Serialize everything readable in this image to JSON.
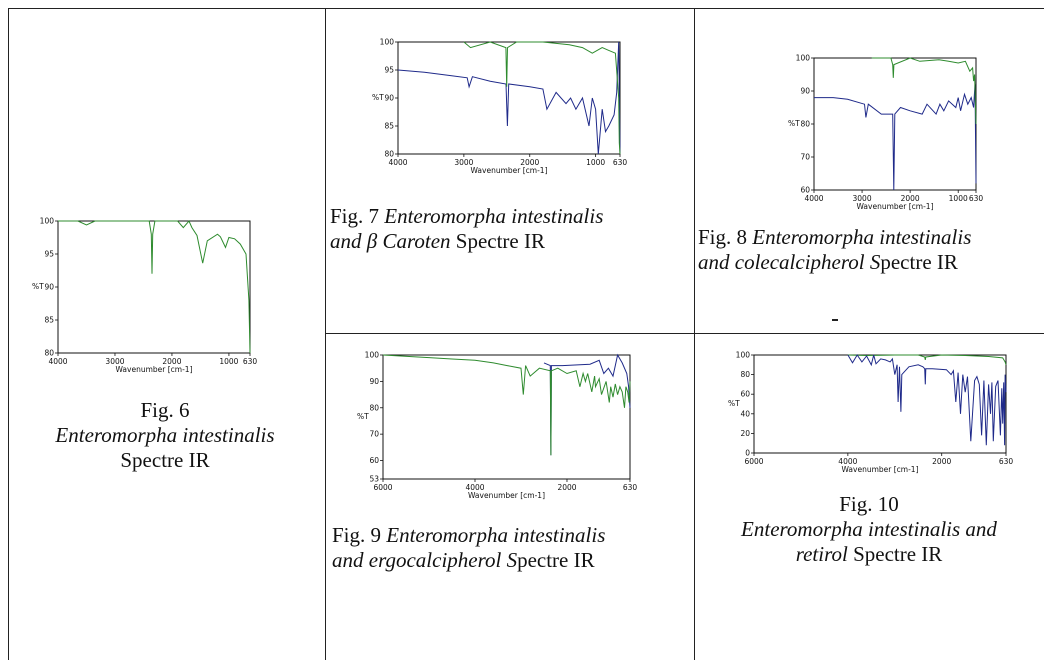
{
  "captions": {
    "f6": {
      "prefix": "Fig. 6",
      "italic": "Enteromorpha intestinalis",
      "suffix": "Spectre IR"
    },
    "f7": {
      "prefix": "Fig. 7 ",
      "italic": "Enteromorpha intestinalis",
      "line2_italic": "and β Caroten",
      "suffix": " Spectre IR"
    },
    "f8": {
      "prefix": "Fig. 8 ",
      "italic": "Enteromorpha intestinalis",
      "line2_italic": "and colecalcipherol S",
      "suffix": "pectre IR"
    },
    "f9": {
      "prefix": "Fig. 9 ",
      "italic": "Enteromorpha intestinalis",
      "line2_italic": "and ergocalcipherol S",
      "suffix": "pectre IR"
    },
    "f10": {
      "prefix": "Fig. 10",
      "italic": "Enteromorpha intestinalis and",
      "line2_italic": "retirol",
      "suffix": " Spectre IR"
    }
  },
  "colors": {
    "sample": "#2e8b2e",
    "reference": "#1f2a8a",
    "axis": "#111111"
  },
  "chart_data": [
    {
      "id": "fig6",
      "type": "line",
      "xlabel": "Wavenumber [cm-1]",
      "ylabel": "%T",
      "xlim": [
        4000,
        630
      ],
      "ylim": [
        80,
        100
      ],
      "yticks": [
        80,
        85,
        90,
        95,
        100
      ],
      "xticks": [
        {
          "v": 4000,
          "t": "4000"
        },
        {
          "v": 3000,
          "t": "3000"
        },
        {
          "v": 2000,
          "t": "2000"
        },
        {
          "v": 1000,
          "t": "1000"
        },
        {
          "v": 630,
          "t": "630"
        }
      ],
      "series": [
        {
          "color": "sample",
          "x": [
            4000,
            3650,
            3500,
            3350,
            3300,
            3000,
            2400,
            2362,
            2350,
            2338,
            2300,
            1900,
            1800,
            1700,
            1650,
            1560,
            1460,
            1380,
            1200,
            1150,
            1060,
            1000,
            900,
            800,
            700,
            650,
            630
          ],
          "y": [
            100,
            100,
            99.4,
            100,
            100,
            100,
            100,
            98,
            92,
            98,
            100,
            100,
            99,
            100,
            99,
            97.8,
            93.6,
            97,
            98,
            97.6,
            96,
            97.5,
            97.3,
            96.5,
            95,
            88,
            80
          ]
        }
      ]
    },
    {
      "id": "fig7",
      "type": "line",
      "xlabel": "Wavenumber [cm-1]",
      "ylabel": "%T",
      "xlim": [
        4000,
        630
      ],
      "ylim": [
        80,
        100
      ],
      "yticks": [
        80,
        85,
        90,
        95,
        100
      ],
      "xticks": [
        {
          "v": 4000,
          "t": "4000"
        },
        {
          "v": 3000,
          "t": "3000"
        },
        {
          "v": 2000,
          "t": "2000"
        },
        {
          "v": 1000,
          "t": "1000"
        },
        {
          "v": 630,
          "t": "630"
        }
      ],
      "series": [
        {
          "color": "reference",
          "x": [
            4000,
            3600,
            3200,
            2950,
            2920,
            2870,
            2600,
            2360,
            2340,
            2320,
            2000,
            1800,
            1740,
            1600,
            1450,
            1380,
            1300,
            1200,
            1100,
            1050,
            1000,
            960,
            900,
            850,
            800,
            720,
            680,
            650,
            630
          ],
          "y": [
            95,
            94.6,
            94,
            93.6,
            92,
            93.8,
            93,
            92.5,
            85,
            92.5,
            92,
            91.6,
            88,
            91,
            89,
            90,
            88,
            90,
            85,
            90,
            88,
            80,
            88,
            84,
            85,
            87,
            91,
            100,
            80
          ]
        },
        {
          "color": "sample",
          "x": [
            3000,
            2900,
            2600,
            2362,
            2350,
            2338,
            2200,
            1800,
            1400,
            1200,
            1050,
            900,
            800,
            700,
            650,
            640,
            630
          ],
          "y": [
            100,
            99,
            100,
            99,
            92,
            99,
            100,
            100,
            99.5,
            99,
            98,
            99,
            98.5,
            98,
            90,
            82,
            80
          ]
        }
      ]
    },
    {
      "id": "fig8",
      "type": "line",
      "xlabel": "Wavenumber [cm-1]",
      "ylabel": "%T",
      "xlim": [
        4000,
        630
      ],
      "ylim": [
        60,
        100
      ],
      "yticks": [
        60,
        70,
        80,
        90,
        100
      ],
      "xticks": [
        {
          "v": 4000,
          "t": "4000"
        },
        {
          "v": 3000,
          "t": "3000"
        },
        {
          "v": 2000,
          "t": "2000"
        },
        {
          "v": 1000,
          "t": "1000"
        },
        {
          "v": 630,
          "t": "630"
        }
      ],
      "series": [
        {
          "color": "reference",
          "x": [
            4000,
            3600,
            3300,
            2950,
            2920,
            2870,
            2600,
            2362,
            2340,
            2320,
            2200,
            2000,
            1750,
            1650,
            1460,
            1380,
            1300,
            1200,
            1050,
            1000,
            950,
            870,
            800,
            730,
            680,
            650,
            630
          ],
          "y": [
            88,
            88,
            87.5,
            86,
            82,
            86,
            83,
            83,
            60,
            83,
            85,
            84,
            83,
            86,
            83,
            86,
            84,
            87,
            85,
            88,
            84,
            89,
            86,
            88,
            85,
            92,
            62
          ]
        },
        {
          "color": "sample",
          "x": [
            2800,
            2400,
            2362,
            2350,
            2338,
            2000,
            1800,
            1400,
            1200,
            1000,
            850,
            760,
            700,
            680,
            660,
            640,
            630
          ],
          "y": [
            100,
            100,
            98,
            94,
            98,
            100,
            99,
            99.5,
            99,
            98.5,
            99,
            96,
            97,
            93,
            95,
            85,
            80
          ]
        }
      ]
    },
    {
      "id": "fig9",
      "type": "line",
      "xlabel": "Wavenumber [cm-1]",
      "ylabel": "%T",
      "xlim": [
        6000,
        630
      ],
      "ylim": [
        53,
        100
      ],
      "yticks": [
        53,
        60,
        70,
        80,
        90,
        100
      ],
      "xticks": [
        {
          "v": 6000,
          "t": "6000"
        },
        {
          "v": 4000,
          "t": "4000"
        },
        {
          "v": 2000,
          "t": "2000"
        },
        {
          "v": 630,
          "t": "630"
        }
      ],
      "series": [
        {
          "color": "reference",
          "x": [
            2500,
            2362,
            2350,
            2338,
            2100,
            1500,
            1300,
            1200,
            1100,
            1000,
            950,
            900,
            800,
            700,
            660,
            630
          ],
          "y": [
            97,
            96,
            62,
            96,
            96,
            96.5,
            98,
            93,
            95,
            92,
            96,
            100,
            97,
            93,
            88,
            80
          ]
        },
        {
          "color": "sample",
          "x": [
            6000,
            5000,
            4500,
            4000,
            3600,
            3300,
            3000,
            2950,
            2900,
            2800,
            2600,
            2362,
            2350,
            2338,
            2200,
            2000,
            1800,
            1720,
            1650,
            1600,
            1550,
            1460,
            1400,
            1380,
            1300,
            1250,
            1150,
            1080,
            1050,
            1000,
            950,
            900,
            850,
            800,
            750,
            720,
            680,
            650,
            630
          ],
          "y": [
            100,
            99,
            98.5,
            98,
            97,
            96,
            95,
            85,
            96,
            92,
            95,
            94,
            62,
            94,
            95,
            93,
            94,
            88,
            93,
            90,
            93,
            86,
            92,
            88,
            91,
            85,
            90,
            82,
            88,
            84,
            89,
            85,
            88,
            86,
            80,
            88,
            86,
            82,
            90
          ]
        }
      ]
    },
    {
      "id": "fig10",
      "type": "line",
      "xlabel": "Wavenumber [cm-1]",
      "ylabel": "%T",
      "xlim": [
        6000,
        630
      ],
      "ylim": [
        0,
        100
      ],
      "yticks": [
        0,
        20,
        40,
        60,
        80,
        100
      ],
      "xticks": [
        {
          "v": 6000,
          "t": "6000"
        },
        {
          "v": 4000,
          "t": "4000"
        },
        {
          "v": 2000,
          "t": "2000"
        },
        {
          "v": 630,
          "t": "630"
        }
      ],
      "series": [
        {
          "color": "sample",
          "x": [
            4000,
            3600,
            3000,
            2500,
            2362,
            2350,
            2338,
            2000,
            1500,
            1000,
            700,
            650,
            630
          ],
          "y": [
            100,
            99.5,
            100,
            100,
            98,
            95,
            98,
            100,
            99.5,
            98.5,
            97,
            93,
            90
          ]
        },
        {
          "color": "reference",
          "x": [
            4000,
            3900,
            3800,
            3700,
            3600,
            3500,
            3450,
            3400,
            3300,
            3200,
            3100,
            3050,
            3000,
            2950,
            2930,
            2900,
            2870,
            2850,
            2700,
            2500,
            2400,
            2362,
            2350,
            2338,
            2200,
            1900,
            1800,
            1750,
            1700,
            1650,
            1600,
            1550,
            1500,
            1450,
            1380,
            1300,
            1250,
            1200,
            1150,
            1100,
            1050,
            1000,
            960,
            930,
            900,
            850,
            800,
            750,
            720,
            700,
            680,
            660,
            650,
            630
          ],
          "y": [
            100,
            92,
            100,
            93,
            99,
            90,
            100,
            91,
            96,
            95,
            93,
            96,
            80,
            90,
            52,
            88,
            42,
            80,
            88,
            90,
            88,
            86,
            70,
            86,
            86,
            85,
            80,
            84,
            52,
            82,
            40,
            80,
            62,
            78,
            12,
            74,
            78,
            70,
            18,
            74,
            8,
            70,
            40,
            72,
            12,
            68,
            74,
            18,
            66,
            30,
            72,
            8,
            80,
            62
          ]
        }
      ]
    }
  ]
}
